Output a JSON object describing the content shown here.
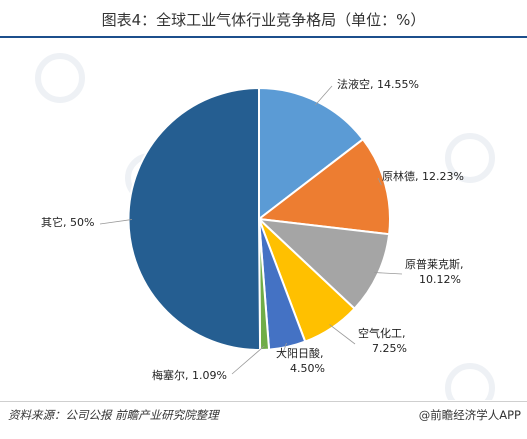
{
  "title": "图表4：全球工业气体行业竞争格局（单位：%）",
  "source": "资料来源：公司公报 前瞻产业研究院整理",
  "brand": "@前瞻经济学人APP",
  "chart_data": {
    "type": "pie",
    "title": "图表4：全球工业气体行业竞争格局（单位：%）",
    "slices": [
      {
        "label": "法液空",
        "value": 14.55,
        "value_text": "14.55%",
        "color": "#5b9bd5"
      },
      {
        "label": "原林德",
        "value": 12.23,
        "value_text": "12.23%",
        "color": "#ed7d31"
      },
      {
        "label": "原普莱克斯",
        "value": 10.12,
        "value_text": "10.12%",
        "color": "#a5a5a5"
      },
      {
        "label": "空气化工",
        "value": 7.25,
        "value_text": "7.25%",
        "color": "#ffc000"
      },
      {
        "label": "大阳日酸",
        "value": 4.5,
        "value_text": "4.50%",
        "color": "#4472c4"
      },
      {
        "label": "梅塞尔",
        "value": 1.09,
        "value_text": "1.09%",
        "color": "#70ad47"
      },
      {
        "label": "其它",
        "value": 50,
        "value_text": "50%",
        "color": "#255e91"
      }
    ],
    "start_angle_deg": 0,
    "direction": "clockwise",
    "legend": "none"
  }
}
